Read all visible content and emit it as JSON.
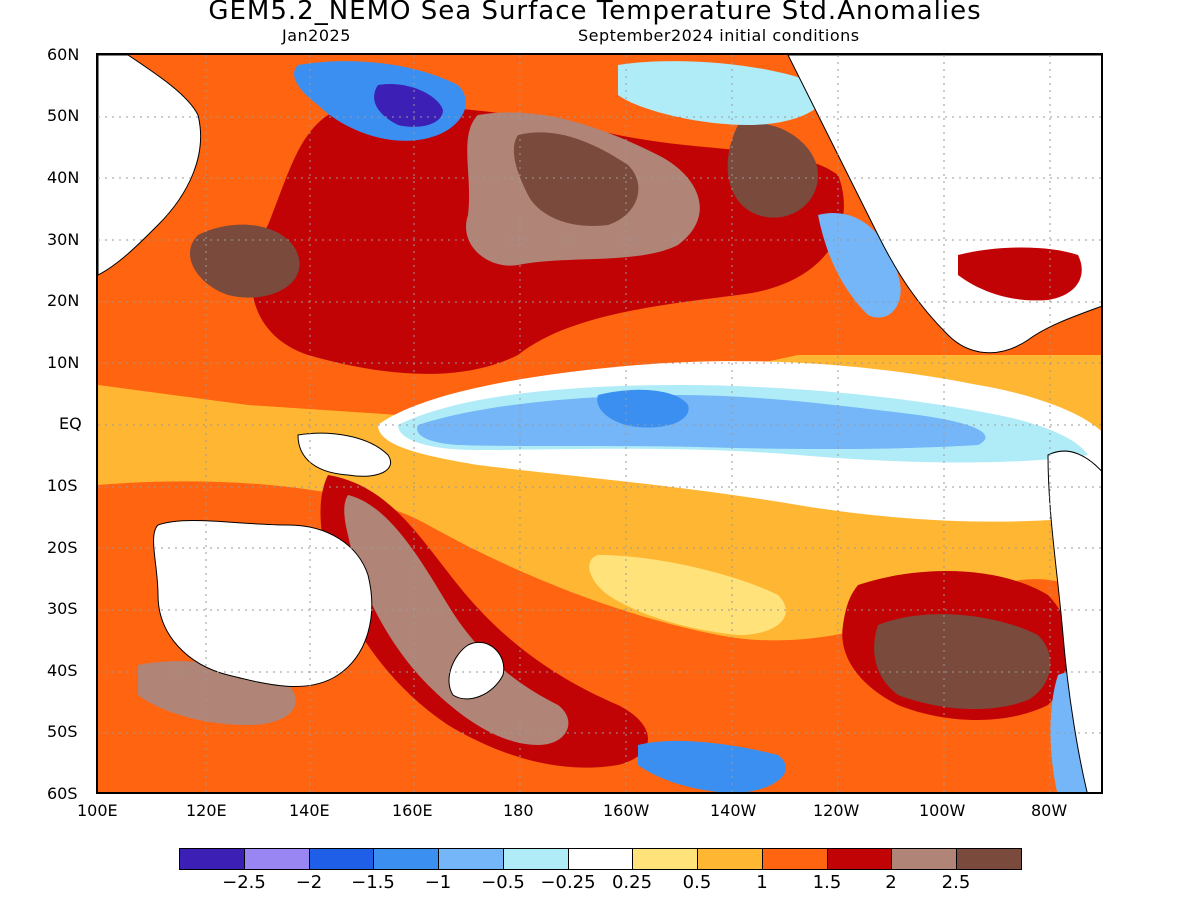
{
  "title": "GEM5.2_NEMO Sea Surface Temperature Std.Anomalies",
  "subtitle_left": "Jan2025",
  "subtitle_right": "September2024 initial conditions",
  "map": {
    "region": "Pacific Ocean",
    "lon_range": [
      "100E",
      "70W"
    ],
    "lat_range": [
      "60S",
      "60N"
    ],
    "grid": true,
    "lat_labels": [
      "60N",
      "50N",
      "40N",
      "30N",
      "20N",
      "10N",
      "EQ",
      "10S",
      "20S",
      "30S",
      "40S",
      "50S",
      "60S"
    ],
    "lon_labels": [
      "100E",
      "120E",
      "140E",
      "160E",
      "180",
      "160W",
      "140W",
      "120W",
      "100W",
      "80W"
    ]
  },
  "colorbar": {
    "colors": [
      "#3c1fb4",
      "#9a86f2",
      "#1f5ee6",
      "#3b8ff0",
      "#74b6f7",
      "#b0ecf7",
      "#ffffff",
      "#ffe37a",
      "#ffb733",
      "#ff6410",
      "#c20306",
      "#b08476",
      "#7a4a3c"
    ],
    "labels": [
      "−2.5",
      "−2",
      "−1.5",
      "−1",
      "−0.5",
      "−0.25",
      "0.25",
      "0.5",
      "1",
      "1.5",
      "2",
      "2.5"
    ]
  },
  "land_color": "#ffffff",
  "grid_color": "#9a9a9a"
}
